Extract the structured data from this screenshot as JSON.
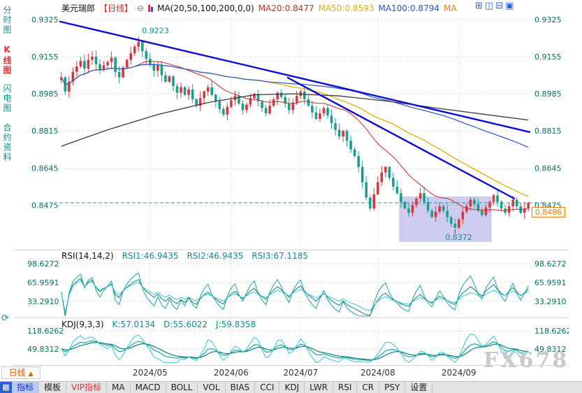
{
  "window": {
    "watermark": "FX678"
  },
  "header": {
    "symbol": "美元瑞郎",
    "period_tag": "【日线】",
    "ma_label": "MA(20,50,100,200,0,0)",
    "ma20": "MA20:0.8477",
    "ma50": "MA50:0.8593",
    "ma100": "MA100:0.8794",
    "ma_more": "MA"
  },
  "sidebar": {
    "items": [
      {
        "label": "分时图"
      },
      {
        "label": "K线图",
        "active": true
      },
      {
        "label": "闪电图"
      },
      {
        "label": "合约资料"
      }
    ]
  },
  "rsi_panel": {
    "title": "RSI(14,14,2)",
    "rsi1": "RSI1:46.9435",
    "rsi2": "RSI2:46.9435",
    "rsi3": "RSI3:67.1185"
  },
  "kdj_panel": {
    "title": "KDJ(9,3,3)",
    "k": "K:57.0134",
    "d": "D:55.6022",
    "j": "J:59.8358"
  },
  "bottom": {
    "period_tab": "日线",
    "toolbar": [
      {
        "label": "指标",
        "state": "active"
      },
      {
        "label": "模板"
      },
      {
        "label": "VIP指标",
        "state": "vip"
      },
      {
        "label": "MA"
      },
      {
        "label": "MACD"
      },
      {
        "label": "BOLL"
      },
      {
        "label": "VOL"
      },
      {
        "label": "BIAS"
      },
      {
        "label": "CCI"
      },
      {
        "label": "KDJ"
      },
      {
        "label": "LWR"
      },
      {
        "label": "RSI"
      },
      {
        "label": "CR"
      },
      {
        "label": "PSY"
      },
      {
        "label": "设置"
      }
    ]
  },
  "price_badge": "0.8486",
  "chart_data": {
    "type": "candlestick",
    "title": "美元瑞郎 USD/CHF 日线 (daily) with MA20/50/100/200, RSI, KDJ",
    "price_ticks": [
      0.9325,
      0.9155,
      0.8985,
      0.8815,
      0.8645,
      0.8475
    ],
    "x_months": [
      {
        "label": "2024/05",
        "i": 23
      },
      {
        "label": "2024/06",
        "i": 44
      },
      {
        "label": "2024/07",
        "i": 62
      },
      {
        "label": "2024/08",
        "i": 82
      },
      {
        "label": "2024/09",
        "i": 103
      }
    ],
    "closes": [
      0.906,
      0.8995,
      0.904,
      0.9085,
      0.911,
      0.9135,
      0.91,
      0.914,
      0.9155,
      0.912,
      0.9095,
      0.9115,
      0.913,
      0.915,
      0.9085,
      0.906,
      0.9105,
      0.914,
      0.917,
      0.92,
      0.9223,
      0.918,
      0.9145,
      0.912,
      0.909,
      0.9115,
      0.907,
      0.904,
      0.9065,
      0.902,
      0.899,
      0.9015,
      0.898,
      0.9005,
      0.896,
      0.893,
      0.8965,
      0.8995,
      0.9015,
      0.898,
      0.895,
      0.8915,
      0.889,
      0.8925,
      0.8955,
      0.8975,
      0.894,
      0.891,
      0.8935,
      0.8965,
      0.8985,
      0.895,
      0.892,
      0.8895,
      0.893,
      0.896,
      0.899,
      0.897,
      0.894,
      0.891,
      0.8945,
      0.8975,
      0.8995,
      0.896,
      0.893,
      0.89,
      0.887,
      0.8895,
      0.892,
      0.8885,
      0.885,
      0.882,
      0.879,
      0.8815,
      0.877,
      0.873,
      0.87,
      0.865,
      0.858,
      0.851,
      0.846,
      0.8525,
      0.858,
      0.8625,
      0.865,
      0.86,
      0.856,
      0.853,
      0.849,
      0.846,
      0.844,
      0.8475,
      0.8505,
      0.853,
      0.849,
      0.845,
      0.842,
      0.8445,
      0.847,
      0.845,
      0.842,
      0.839,
      0.8372,
      0.841,
      0.8445,
      0.847,
      0.85,
      0.848,
      0.845,
      0.843,
      0.8465,
      0.849,
      0.852,
      0.849,
      0.846,
      0.844,
      0.847,
      0.85,
      0.847,
      0.844,
      0.846,
      0.8486
    ],
    "annotations": {
      "peak": {
        "i": 20,
        "price": 0.9223
      },
      "trough": {
        "i": 102,
        "price": 0.8372
      },
      "last_price": 0.8486
    },
    "trendlines": [
      {
        "i1": 0,
        "p1": 0.9316,
        "i2": 122,
        "p2": 0.8809
      },
      {
        "i1": 59,
        "p1": 0.906,
        "i2": 118,
        "p2": 0.8504
      }
    ],
    "selection_region": {
      "i1": 88,
      "i2": 112,
      "p_top": 0.8515,
      "p_bottom": 0.8307
    },
    "ma_overlays": {
      "ma200_path": [
        [
          0,
          0.8745
        ],
        [
          12,
          0.882
        ],
        [
          25,
          0.889
        ],
        [
          38,
          0.8945
        ],
        [
          50,
          0.898
        ],
        [
          60,
          0.8985
        ],
        [
          72,
          0.8975
        ],
        [
          85,
          0.895
        ],
        [
          97,
          0.892
        ],
        [
          110,
          0.889
        ],
        [
          121,
          0.8865
        ]
      ]
    },
    "moving_averages": {
      "ma20": 0.8477,
      "ma50": 0.8593,
      "ma100": 0.8794
    },
    "indicators": {
      "rsi": {
        "params": [
          14,
          14,
          2
        ],
        "rsi1": 46.9435,
        "rsi2": 46.9435,
        "rsi3": 67.1185,
        "ticks": [
          98.6272,
          65.9591,
          33.291
        ]
      },
      "kdj": {
        "params": [
          9,
          3,
          3
        ],
        "k": 57.0134,
        "d": 55.6022,
        "j": 59.8358,
        "ticks": [
          118.6262,
          49.8312
        ]
      }
    },
    "colors": {
      "up": "#d9363e",
      "down": "#1c9e8e",
      "ma20": "#cc2a2a",
      "ma50": "#e2b007",
      "ma100": "#2553cc",
      "ma200": "#3a3a3a",
      "trend": "#0d0dd0",
      "osc1": "#1fa3a3",
      "osc2": "#0e8080",
      "osc3": "#31c7d4",
      "grid": "#c9c9c9",
      "dashed": "#18a08a",
      "annotation": "#0e8f7f",
      "selection": "rgba(130,120,220,0.38)"
    }
  }
}
